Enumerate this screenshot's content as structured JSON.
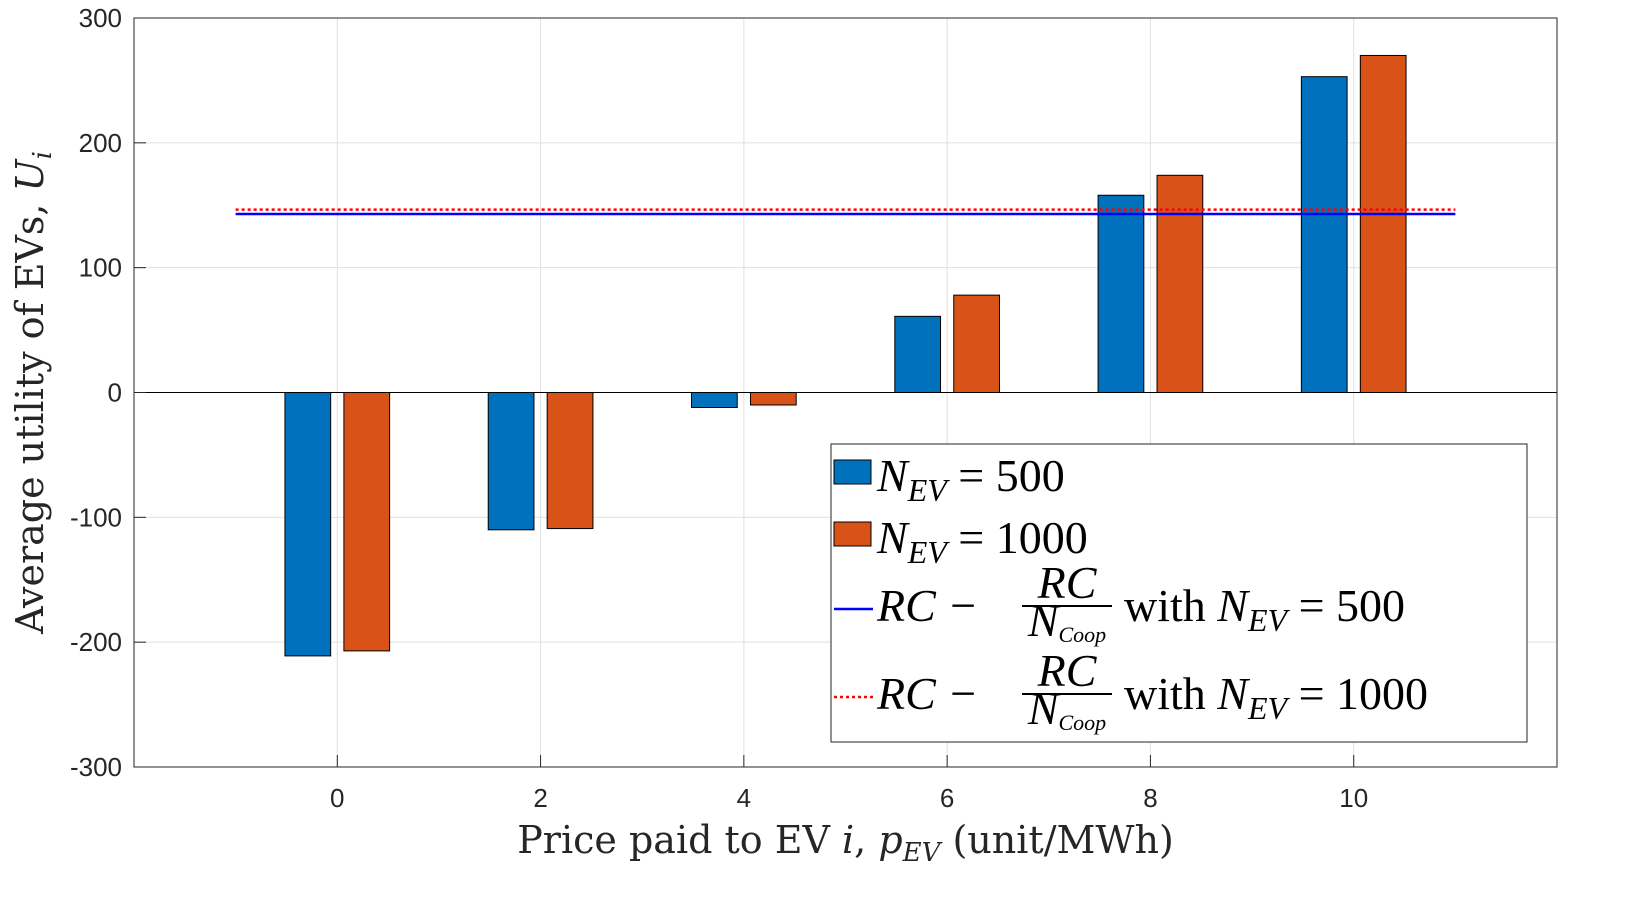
{
  "chart_data": {
    "type": "bar",
    "title": "",
    "xlabel": {
      "text": "Price paid to EV ",
      "var": "i",
      "sep": ", ",
      "var2": "p",
      "sub2": "EV",
      "unit": " (unit/MWh)"
    },
    "ylabel": {
      "text": "Average utility of EVs, ",
      "var": "U",
      "sub": "i"
    },
    "categories": [
      0,
      2,
      4,
      6,
      8,
      10
    ],
    "xlim": [
      -2,
      12
    ],
    "ylim": [
      -300,
      300
    ],
    "xticks": [
      "0",
      "2",
      "4",
      "6",
      "8",
      "10"
    ],
    "yticks": [
      "-300",
      "-200",
      "-100",
      "0",
      "100",
      "200",
      "300"
    ],
    "yticks_values": [
      -300,
      -200,
      -100,
      0,
      100,
      200,
      300
    ],
    "grid": true,
    "series": [
      {
        "name": "N_EV = 500",
        "color": "#0072BD",
        "values": [
          -211,
          -110,
          -12,
          61,
          158,
          253
        ]
      },
      {
        "name": "N_EV = 1000",
        "color": "#D95319",
        "values": [
          -207,
          -109,
          -10,
          78,
          174,
          270
        ]
      }
    ],
    "lines": [
      {
        "name": "RC - RC/N_Coop with N_EV = 500",
        "color": "#0000FF",
        "style": "solid",
        "y": 143,
        "x_range": [
          -1,
          11
        ]
      },
      {
        "name": "RC - RC/N_Coop with N_EV = 1000",
        "color": "#FF0000",
        "style": "dotted",
        "y": 146.5,
        "x_range": [
          -1,
          11
        ]
      }
    ],
    "legend": {
      "placement": "bottom-right",
      "entries": [
        {
          "main": "N",
          "sub": "EV",
          "rest": " = 500"
        },
        {
          "main": "N",
          "sub": "EV",
          "rest": " = 1000"
        },
        {
          "lead": "RC − ",
          "num": "RC",
          "den": "N",
          "densub": "Coop",
          "mid": " with ",
          "main": "N",
          "sub": "EV",
          "rest": " = 500"
        },
        {
          "lead": "RC − ",
          "num": "RC",
          "den": "N",
          "densub": "Coop",
          "mid": " with ",
          "main": "N",
          "sub": "EV",
          "rest": " = 1000"
        }
      ]
    }
  }
}
